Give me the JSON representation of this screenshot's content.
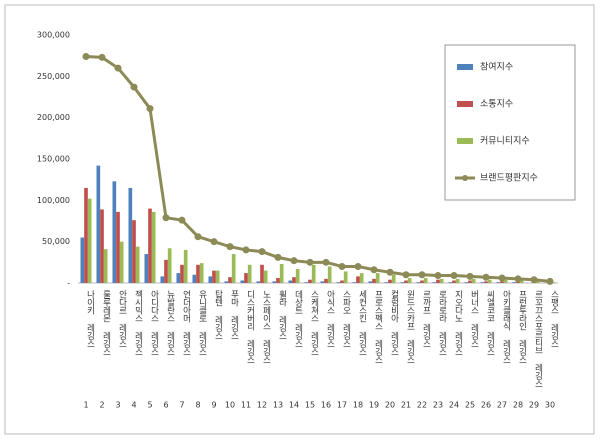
{
  "chart_data": {
    "type": "bar",
    "categories": [
      "나이키 레깅스",
      "룰루레몬 레깅스",
      "안다르 레깅스",
      "젝시믹스 레깅스",
      "아디다스 레깅스",
      "뉴발란스 레깅스",
      "언더아머 레깅스",
      "유니클로 레깅스",
      "탑텐 레깅스",
      "푸마 레깅스",
      "디스커버리 레깅스",
      "노스페이스 레깅스",
      "휠라 레깅스",
      "데상트 레깅스",
      "스케쳐스 레깅스",
      "아식스 레깅스",
      "스파오 레깅스",
      "세컨스킨 레깅스",
      "프로스펙스 레깅스",
      "컬럼비아 레깅스",
      "윈드스카프 레깅스",
      "르까프 레깅스",
      "로라로라 레깅스",
      "지오다노 레깅스",
      "버너스 레깅스",
      "씨엘코코 레깅스",
      "아키클래식 레깅스",
      "프런투라인 레깅스",
      "르꼬끄스포르티브 레깅스",
      "스팽스 레깅스"
    ],
    "ranks": [
      1,
      2,
      3,
      4,
      5,
      6,
      7,
      8,
      9,
      10,
      11,
      12,
      13,
      14,
      15,
      16,
      17,
      18,
      19,
      20,
      21,
      22,
      23,
      24,
      25,
      26,
      27,
      28,
      29,
      30
    ],
    "series": [
      {
        "name": "참여지수",
        "type": "bar",
        "color": "#4f81bd",
        "values": [
          55000,
          142000,
          123000,
          115000,
          35000,
          8000,
          12000,
          10000,
          8000,
          2000,
          3000,
          2000,
          2000,
          3000,
          1000,
          2000,
          1000,
          1000,
          2000,
          1000,
          1000,
          1000,
          1000,
          1000,
          1000,
          1000,
          1000,
          1000,
          0,
          0
        ]
      },
      {
        "name": "소통지수",
        "type": "bar",
        "color": "#c0504d",
        "values": [
          115000,
          89000,
          86000,
          76000,
          90000,
          28000,
          22000,
          22000,
          15000,
          7000,
          12000,
          22000,
          6000,
          7000,
          4000,
          5000,
          3000,
          8000,
          5000,
          4000,
          3000,
          3000,
          4000,
          3000,
          3000,
          2000,
          2000,
          2000,
          2000,
          1000
        ]
      },
      {
        "name": "커뮤니티지수",
        "type": "bar",
        "color": "#9bbb59",
        "values": [
          102000,
          41000,
          50000,
          44000,
          86000,
          42000,
          40000,
          24000,
          15000,
          35000,
          22000,
          15000,
          23000,
          17000,
          22000,
          20000,
          14000,
          12000,
          12000,
          10000,
          6000,
          6000,
          5000,
          5000,
          5000,
          4000,
          4000,
          3000,
          2000,
          1000
        ]
      },
      {
        "name": "브랜드평판지수",
        "type": "line",
        "color": "#8c8a56",
        "values": [
          274000,
          273000,
          260000,
          237000,
          211000,
          79000,
          76000,
          56000,
          50000,
          44000,
          40000,
          38000,
          31000,
          27000,
          25000,
          25000,
          20000,
          20000,
          16000,
          13000,
          10000,
          10000,
          9000,
          9000,
          8000,
          7000,
          6000,
          5000,
          4000,
          2000
        ]
      }
    ],
    "ylim": [
      0,
      300000
    ],
    "yticks": [
      {
        "value": 0,
        "label": "-"
      },
      {
        "value": 50000,
        "label": "50,000"
      },
      {
        "value": 100000,
        "label": "100,000"
      },
      {
        "value": 150000,
        "label": "150,000"
      },
      {
        "value": 200000,
        "label": "200,000"
      },
      {
        "value": 250000,
        "label": "250,000"
      },
      {
        "value": 300000,
        "label": "300,000"
      }
    ],
    "grid": false,
    "legend": "right"
  }
}
